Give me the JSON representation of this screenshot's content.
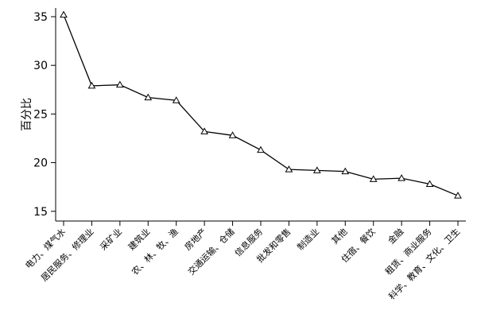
{
  "chart_data": {
    "type": "line",
    "title": "",
    "xlabel": "",
    "ylabel": "百分比",
    "ylim": [
      15,
      35
    ],
    "yticks": [
      15,
      20,
      25,
      30,
      35
    ],
    "grid": false,
    "marker": "triangle",
    "line_color": "#000000",
    "categories": [
      "电力、煤气水",
      "居民服务、修理业",
      "采矿业",
      "建筑业",
      "农、林、牧、渔",
      "房地产",
      "交通运输、仓储",
      "信息服务",
      "批发和零售",
      "制造业",
      "其他",
      "住宿、餐饮",
      "金融",
      "租赁、商业服务",
      "科学、教育、文化、卫生"
    ],
    "series": [
      {
        "values": [
          35.2,
          27.9,
          28.0,
          26.7,
          26.4,
          23.2,
          22.8,
          21.3,
          19.3,
          19.2,
          19.1,
          18.3,
          18.4,
          17.8,
          16.6
        ]
      }
    ]
  }
}
